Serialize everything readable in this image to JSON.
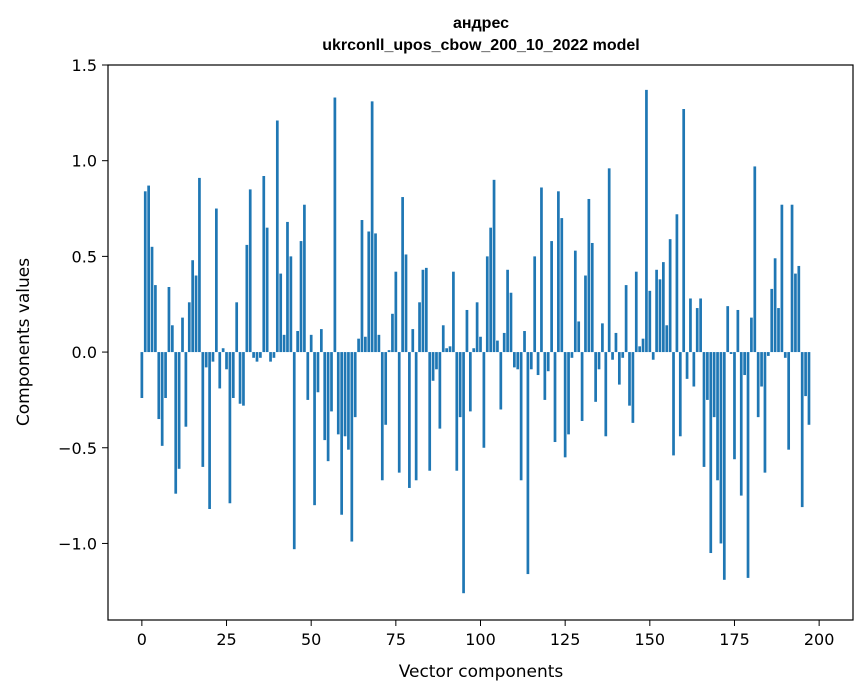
{
  "chart_data": {
    "type": "bar",
    "title": "андрес",
    "subtitle": "ukrconll_upos_cbow_200_10_2022 model",
    "xlabel": "Vector components",
    "ylabel": "Components values",
    "xlim": [
      -10,
      210
    ],
    "ylim": [
      -1.4,
      1.5
    ],
    "xticks": [
      0,
      25,
      50,
      75,
      100,
      125,
      150,
      175,
      200
    ],
    "yticks": [
      -1.0,
      -0.5,
      0.0,
      0.5,
      1.0,
      1.5
    ],
    "xtick_labels": [
      "0",
      "25",
      "50",
      "75",
      "100",
      "125",
      "150",
      "175",
      "200"
    ],
    "ytick_labels": [
      "−1.0",
      "−0.5",
      "0.0",
      "0.5",
      "1.0",
      "1.5"
    ],
    "bar_color": "#1f77b4",
    "grid": false,
    "values": [
      -0.24,
      0.84,
      0.87,
      0.55,
      0.35,
      -0.35,
      -0.49,
      -0.24,
      0.34,
      0.14,
      -0.74,
      -0.61,
      0.18,
      -0.39,
      0.26,
      0.48,
      0.4,
      0.91,
      -0.6,
      -0.08,
      -0.82,
      -0.05,
      0.75,
      -0.19,
      0.02,
      -0.09,
      -0.79,
      -0.24,
      0.26,
      -0.27,
      -0.28,
      0.56,
      0.85,
      -0.03,
      -0.05,
      -0.03,
      0.92,
      0.65,
      -0.05,
      -0.03,
      1.21,
      0.41,
      0.09,
      0.68,
      0.5,
      -1.03,
      0.11,
      0.58,
      0.77,
      -0.25,
      0.09,
      -0.8,
      -0.21,
      0.12,
      -0.46,
      -0.57,
      -0.31,
      1.33,
      -0.43,
      -0.85,
      -0.44,
      -0.51,
      -0.99,
      -0.34,
      0.07,
      0.69,
      0.08,
      0.63,
      1.31,
      0.62,
      0.09,
      -0.67,
      -0.38,
      0.01,
      0.2,
      0.42,
      -0.63,
      0.81,
      0.51,
      -0.71,
      0.12,
      -0.67,
      0.26,
      0.43,
      0.44,
      -0.62,
      -0.15,
      -0.09,
      -0.4,
      0.14,
      0.02,
      0.03,
      0.42,
      -0.62,
      -0.34,
      -1.26,
      0.22,
      -0.31,
      0.02,
      0.26,
      0.08,
      -0.5,
      0.5,
      0.65,
      0.9,
      0.06,
      -0.3,
      0.1,
      0.43,
      0.31,
      -0.08,
      -0.09,
      -0.67,
      0.11,
      -1.16,
      -0.09,
      0.5,
      -0.12,
      0.86,
      -0.25,
      -0.1,
      0.58,
      -0.47,
      0.84,
      0.7,
      -0.55,
      -0.43,
      -0.03,
      0.53,
      0.16,
      -0.36,
      0.4,
      0.8,
      0.57,
      -0.26,
      -0.09,
      0.15,
      -0.44,
      0.96,
      -0.04,
      0.1,
      -0.17,
      -0.03,
      0.35,
      -0.28,
      -0.37,
      0.42,
      0.03,
      0.07,
      1.37,
      0.32,
      -0.04,
      0.43,
      0.38,
      0.47,
      0.14,
      0.59,
      -0.54,
      0.72,
      -0.44,
      1.27,
      -0.14,
      0.28,
      -0.18,
      0.23,
      0.28,
      -0.6,
      -0.25,
      -1.05,
      -0.34,
      -0.67,
      -1.0,
      -1.19,
      0.24,
      -0.01,
      -0.56,
      0.22,
      -0.75,
      -0.12,
      -1.18,
      0.18,
      0.97,
      -0.34,
      -0.18,
      -0.63,
      -0.02,
      0.33,
      0.49,
      0.23,
      0.77,
      -0.03,
      -0.51,
      0.77,
      0.41,
      0.45,
      -0.81,
      -0.23,
      -0.38
    ]
  }
}
